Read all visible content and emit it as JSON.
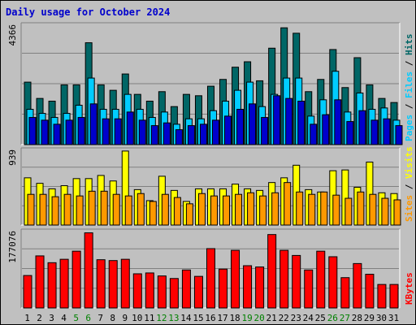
{
  "title": "Daily usage for October 2024",
  "colors": {
    "hits": "#006666",
    "files": "#00ccff",
    "pages": "#0000cc",
    "visits": "#ffff00",
    "sites": "#ff9900",
    "kbytes": "#ff0000",
    "weekend": "#008000",
    "weekday": "#000000"
  },
  "chart_data": [
    {
      "type": "bar",
      "panel": "hits-files-pages",
      "ylabel_max": "4366",
      "legend": [
        {
          "name": "Hits",
          "color": "#006666"
        },
        {
          "name": "Files",
          "color": "#00ccff"
        },
        {
          "name": "Pages",
          "color": "#0000cc"
        }
      ],
      "separator": " / ",
      "ylim": [
        0,
        4366
      ],
      "categories": [
        "1",
        "2",
        "3",
        "4",
        "5",
        "6",
        "7",
        "8",
        "9",
        "10",
        "11",
        "12",
        "13",
        "14",
        "15",
        "16",
        "17",
        "18",
        "19",
        "20",
        "21",
        "22",
        "23",
        "24",
        "25",
        "26",
        "27",
        "28",
        "29",
        "30",
        "31"
      ],
      "weekend": [
        5,
        6,
        12,
        13,
        19,
        20,
        26,
        27
      ],
      "series": [
        {
          "name": "Hits",
          "values": [
            2300,
            1700,
            1600,
            2200,
            2200,
            3750,
            2200,
            2000,
            2600,
            1850,
            1600,
            1950,
            1400,
            1850,
            1800,
            2150,
            2400,
            2850,
            3050,
            2350,
            3550,
            4300,
            4100,
            1950,
            2400,
            3500,
            2100,
            3200,
            2200,
            1700,
            1550
          ]
        },
        {
          "name": "Files",
          "values": [
            1300,
            1150,
            1000,
            1150,
            1450,
            2450,
            1300,
            1300,
            1850,
            1300,
            1000,
            1200,
            750,
            950,
            950,
            1250,
            1600,
            2000,
            2300,
            1400,
            1850,
            2450,
            2450,
            1050,
            1650,
            2700,
            1200,
            1900,
            1300,
            1350,
            900
          ]
        },
        {
          "name": "Pages",
          "values": [
            1000,
            900,
            750,
            900,
            1000,
            1500,
            950,
            950,
            1200,
            900,
            700,
            800,
            550,
            700,
            750,
            900,
            1050,
            1300,
            1500,
            1000,
            1800,
            1700,
            1600,
            750,
            1100,
            1650,
            850,
            1250,
            900,
            950,
            700
          ]
        }
      ]
    },
    {
      "type": "bar",
      "panel": "visits-sites",
      "ylabel_max": "939",
      "legend": [
        {
          "name": "Visits",
          "color": "#ffff00"
        },
        {
          "name": "Sites",
          "color": "#ff9900"
        }
      ],
      "separator": " / ",
      "ylim": [
        0,
        939
      ],
      "categories": [
        "1",
        "2",
        "3",
        "4",
        "5",
        "6",
        "7",
        "8",
        "9",
        "10",
        "11",
        "12",
        "13",
        "14",
        "15",
        "16",
        "17",
        "18",
        "19",
        "20",
        "21",
        "22",
        "23",
        "24",
        "25",
        "26",
        "27",
        "28",
        "29",
        "30",
        "31"
      ],
      "weekend": [
        5,
        6,
        12,
        13,
        19,
        20,
        26,
        27
      ],
      "series": [
        {
          "name": "Visits",
          "values": [
            600,
            530,
            460,
            500,
            590,
            590,
            630,
            560,
            940,
            450,
            310,
            620,
            440,
            300,
            460,
            460,
            460,
            520,
            460,
            440,
            540,
            600,
            760,
            450,
            420,
            690,
            700,
            480,
            800,
            410,
            400
          ]
        },
        {
          "name": "Sites",
          "values": [
            390,
            390,
            360,
            390,
            370,
            430,
            430,
            390,
            370,
            400,
            300,
            390,
            350,
            270,
            400,
            370,
            370,
            390,
            410,
            370,
            410,
            540,
            420,
            390,
            420,
            380,
            340,
            420,
            390,
            340,
            320
          ]
        }
      ]
    },
    {
      "type": "bar",
      "panel": "kbytes",
      "ylabel_max": "177076",
      "legend": [
        {
          "name": "KBytes",
          "color": "#ff0000"
        }
      ],
      "ylim": [
        0,
        177076
      ],
      "categories": [
        "1",
        "2",
        "3",
        "4",
        "5",
        "6",
        "7",
        "8",
        "9",
        "10",
        "11",
        "12",
        "13",
        "14",
        "15",
        "16",
        "17",
        "18",
        "19",
        "20",
        "21",
        "22",
        "23",
        "24",
        "25",
        "26",
        "27",
        "28",
        "29",
        "30",
        "31"
      ],
      "weekend": [
        5,
        6,
        12,
        13,
        19,
        20,
        26,
        27
      ],
      "series": [
        {
          "name": "KBytes",
          "values": [
            76000,
            122000,
            106000,
            114000,
            133000,
            176000,
            113000,
            111000,
            114000,
            80000,
            82000,
            75000,
            69000,
            89000,
            74000,
            139000,
            91000,
            135000,
            99000,
            96000,
            172000,
            135000,
            123000,
            89000,
            133000,
            120000,
            71000,
            104000,
            79000,
            55000,
            55000
          ]
        }
      ]
    }
  ]
}
